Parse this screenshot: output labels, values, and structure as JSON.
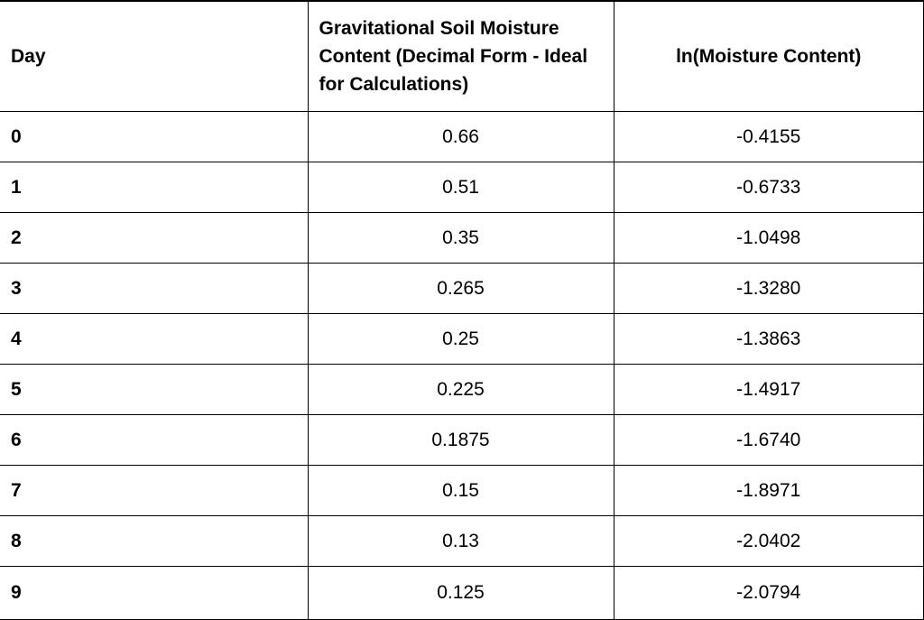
{
  "table": {
    "headers": {
      "day": "Day",
      "moisture": "Gravitational Soil Moisture Content (Decimal Form - Ideal for Calculations)",
      "ln": "ln(Moisture Content)"
    },
    "rows": [
      {
        "day": "0",
        "moisture": "0.66",
        "ln": "-0.4155"
      },
      {
        "day": "1",
        "moisture": "0.51",
        "ln": "-0.6733"
      },
      {
        "day": "2",
        "moisture": "0.35",
        "ln": "-1.0498"
      },
      {
        "day": "3",
        "moisture": "0.265",
        "ln": "-1.3280"
      },
      {
        "day": "4",
        "moisture": "0.25",
        "ln": "-1.3863"
      },
      {
        "day": "5",
        "moisture": "0.225",
        "ln": "-1.4917"
      },
      {
        "day": "6",
        "moisture": "0.1875",
        "ln": "-1.6740"
      },
      {
        "day": "7",
        "moisture": "0.15",
        "ln": "-1.8971"
      },
      {
        "day": "8",
        "moisture": "0.13",
        "ln": "-2.0402"
      },
      {
        "day": "9",
        "moisture": "0.125",
        "ln": "-2.0794"
      }
    ]
  }
}
